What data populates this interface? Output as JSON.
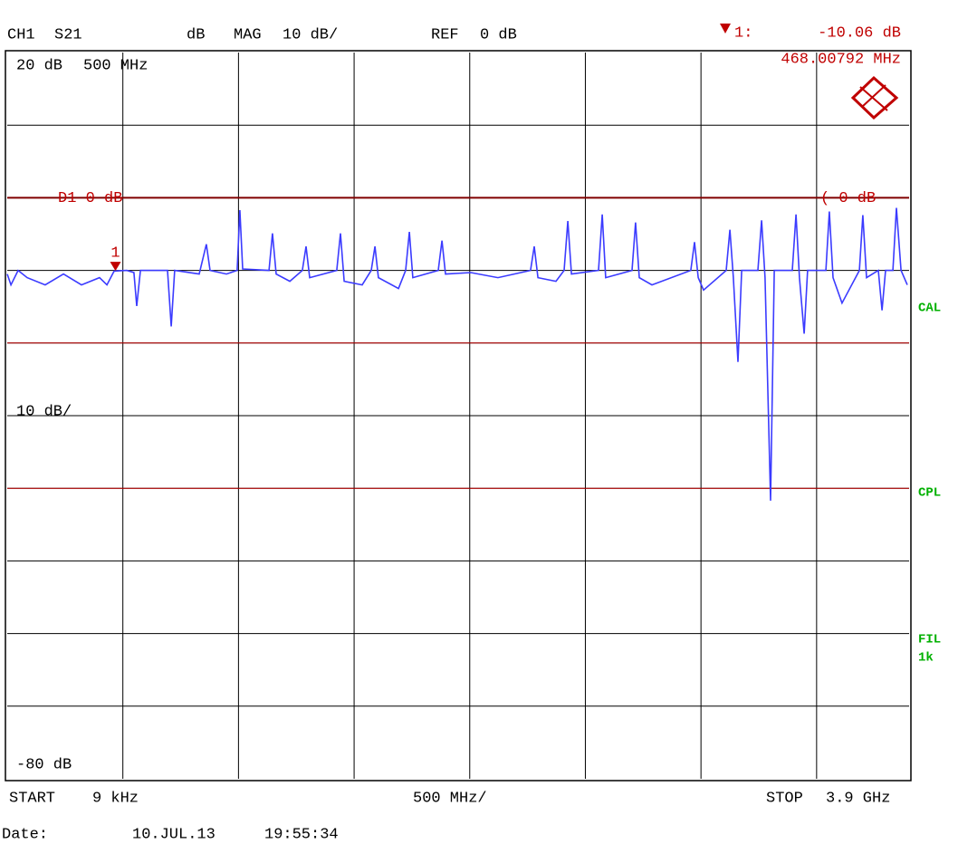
{
  "chart_data": {
    "type": "line",
    "header": {
      "channel": "CH1",
      "param": "S21",
      "format_unit": "dB",
      "format": "MAG",
      "scale": "10 dB/",
      "ref_label": "REF",
      "ref_value": "0 dB"
    },
    "marker_readout": {
      "name": "1:",
      "level": "-10.06 dB",
      "frequency": "468.00792 MHz"
    },
    "top_left": {
      "level": "20 dB",
      "freq": "500 MHz"
    },
    "display_line_label": "D1 0 dB",
    "display_line_right": "( 0 dB",
    "display_line": 0,
    "limit_lines": [
      -20,
      -40
    ],
    "scale_label": "10 dB/",
    "bottom_left": "-80 dB",
    "side_labels": [
      "CAL",
      "CPL",
      "FIL",
      "1k"
    ],
    "footer": {
      "start": "START",
      "start_value": "9 kHz",
      "span": "500 MHz/",
      "stop": "STOP",
      "stop_value": "3.9 GHz",
      "date_label": "Date:",
      "date": "10.JUL.13",
      "time": "19:55:34"
    },
    "marker": {
      "label": "1",
      "x": 468.00792,
      "y": -10.06,
      "color": "#c00000"
    },
    "xlim": [
      0.009,
      3900
    ],
    "xticks": [
      500,
      1000,
      1500,
      2000,
      2500,
      3000,
      3500
    ],
    "ylim": [
      -80,
      20
    ],
    "yticks": [
      -70,
      -60,
      -50,
      -40,
      -30,
      -20,
      -10,
      0,
      10
    ],
    "grid": true,
    "series": [
      {
        "name": "S21",
        "color": "#3b3bff",
        "x": [
          0.009,
          16,
          47,
          86,
          164,
          243,
          321,
          399,
          431,
          462,
          517,
          548,
          560,
          576,
          693,
          709,
          724,
          830,
          861,
          877,
          948,
          994,
          1006,
          1018,
          1132,
          1147,
          1163,
          1222,
          1276,
          1292,
          1308,
          1425,
          1441,
          1457,
          1535,
          1574,
          1590,
          1605,
          1692,
          1723,
          1739,
          1754,
          1864,
          1880,
          1895,
          2005,
          2122,
          2263,
          2279,
          2295,
          2373,
          2408,
          2424,
          2440,
          2557,
          2573,
          2588,
          2702,
          2717,
          2733,
          2788,
          2956,
          2972,
          2988,
          3011,
          3109,
          3125,
          3140,
          3160,
          3176,
          3246,
          3262,
          3277,
          3301,
          3317,
          3395,
          3411,
          3426,
          3446,
          3461,
          3540,
          3555,
          3571,
          3610,
          3685,
          3700,
          3716,
          3767,
          3783,
          3798,
          3830,
          3845,
          3865,
          3892
        ],
        "values": [
          -10.5,
          -12,
          -10,
          -11,
          -12,
          -10.5,
          -12,
          -11,
          -12,
          -10.1,
          -10,
          -10.3,
          -14.9,
          -10,
          -10,
          -17.7,
          -10,
          -10.5,
          -6.4,
          -10,
          -10.5,
          -10,
          -1.7,
          -9.8,
          -10,
          -4.9,
          -10.5,
          -11.5,
          -10,
          -6.7,
          -11,
          -10,
          -4.9,
          -11.5,
          -12,
          -10,
          -6.7,
          -11,
          -12.5,
          -10,
          -4.7,
          -11,
          -10,
          -5.9,
          -10.5,
          -10.3,
          -11,
          -10,
          -6.7,
          -11,
          -11.5,
          -10,
          -3.2,
          -10.5,
          -10,
          -2.3,
          -11,
          -10,
          -3.4,
          -11,
          -12,
          -10,
          -6.1,
          -11,
          -12.7,
          -10,
          -4.4,
          -11,
          -22.6,
          -10,
          -10,
          -3.1,
          -11,
          -41.7,
          -10,
          -10,
          -2.3,
          -11,
          -18.7,
          -10,
          -10,
          -1.9,
          -11,
          -14.5,
          -10,
          -2.4,
          -11,
          -10,
          -15.5,
          -10,
          -10,
          -1.4,
          -10,
          -12
        ]
      }
    ]
  }
}
